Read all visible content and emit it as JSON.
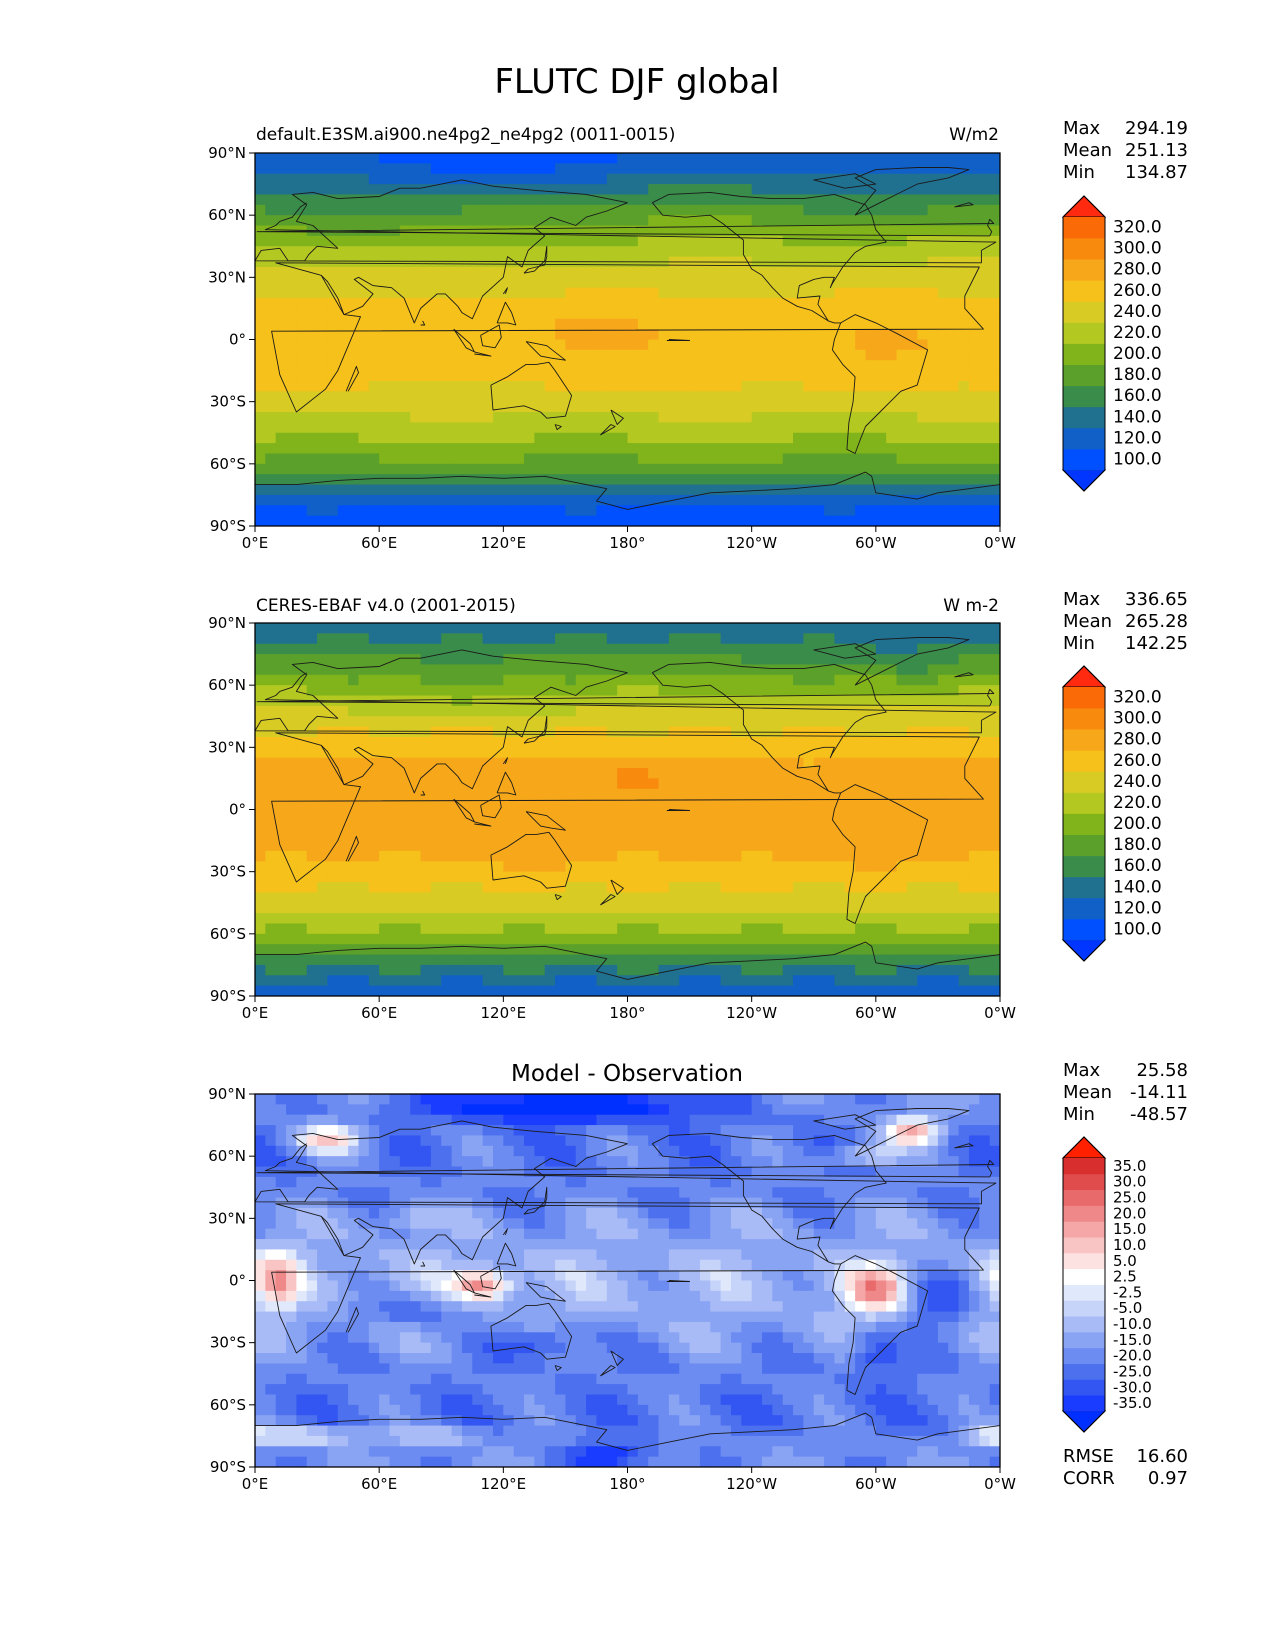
{
  "figure": {
    "title": "FLUTC DJF global"
  },
  "axis_ticks": {
    "lat": [
      "90°N",
      "60°N",
      "30°N",
      "0°",
      "30°S",
      "60°S",
      "90°S"
    ],
    "lon": [
      "0°E",
      "60°E",
      "120°E",
      "180°",
      "120°W",
      "60°W",
      "0°W"
    ]
  },
  "colors": {
    "abs_levels": [
      "#0050ff",
      "#1060c8",
      "#207090",
      "#3a8c4a",
      "#5aa02a",
      "#80b41a",
      "#b4c822",
      "#d8cc24",
      "#f6c11a",
      "#f7a81a",
      "#f88a0e",
      "#fa6a06"
    ],
    "abs_extend_low": "#0036ff",
    "abs_extend_high": "#ff2a10",
    "diff_levels": [
      "#1a3cff",
      "#3356f2",
      "#4d70ee",
      "#6d8cf2",
      "#8aa4f4",
      "#a8bbf7",
      "#c6d4f9",
      "#e0e8fb",
      "#ffffff",
      "#fde2e2",
      "#f9c4c4",
      "#f5a6a6",
      "#ef8888",
      "#e86a6a",
      "#e04c4c",
      "#d82e2e"
    ],
    "diff_extend_low": "#0030ff",
    "diff_extend_high": "#ff2000",
    "coast": "#1a1a1a"
  },
  "chart_data": [
    {
      "type": "heatmap",
      "title": "default.E3SM.ai900.ne4pg2_ne4pg2 (0011-0015)",
      "units": "W/m2",
      "stats": {
        "max": "294.19",
        "mean": "251.13",
        "min": "134.87"
      },
      "stat_labels": {
        "max": "Max",
        "mean": "Mean",
        "min": "Min"
      },
      "colorbar": {
        "ticks": [
          "320.0",
          "300.0",
          "280.0",
          "260.0",
          "240.0",
          "220.0",
          "200.0",
          "180.0",
          "160.0",
          "140.0",
          "120.0",
          "100.0"
        ],
        "scale": "absolute"
      },
      "x_range": [
        0,
        360
      ],
      "y_range": [
        -90,
        90
      ]
    },
    {
      "type": "heatmap",
      "title": "CERES-EBAF v4.0 (2001-2015)",
      "units": "W m-2",
      "stats": {
        "max": "336.65",
        "mean": "265.28",
        "min": "142.25"
      },
      "stat_labels": {
        "max": "Max",
        "mean": "Mean",
        "min": "Min"
      },
      "colorbar": {
        "ticks": [
          "320.0",
          "300.0",
          "280.0",
          "260.0",
          "240.0",
          "220.0",
          "200.0",
          "180.0",
          "160.0",
          "140.0",
          "120.0",
          "100.0"
        ],
        "scale": "absolute"
      },
      "x_range": [
        0,
        360
      ],
      "y_range": [
        -90,
        90
      ]
    },
    {
      "type": "heatmap",
      "title": "Model - Observation",
      "units": "",
      "stats": {
        "max": "25.58",
        "mean": "-14.11",
        "min": "-48.57"
      },
      "stat_labels": {
        "max": "Max",
        "mean": "Mean",
        "min": "Min"
      },
      "colorbar": {
        "ticks": [
          "35.0",
          "30.0",
          "25.0",
          "20.0",
          "15.0",
          "10.0",
          "5.0",
          "2.5",
          "-2.5",
          "-5.0",
          "-10.0",
          "-15.0",
          "-20.0",
          "-25.0",
          "-30.0",
          "-35.0"
        ],
        "scale": "diff"
      },
      "extra_stats": {
        "rmse_label": "RMSE",
        "rmse": "16.60",
        "corr_label": "CORR",
        "corr": "0.97"
      },
      "x_range": [
        0,
        360
      ],
      "y_range": [
        -90,
        90
      ]
    }
  ]
}
